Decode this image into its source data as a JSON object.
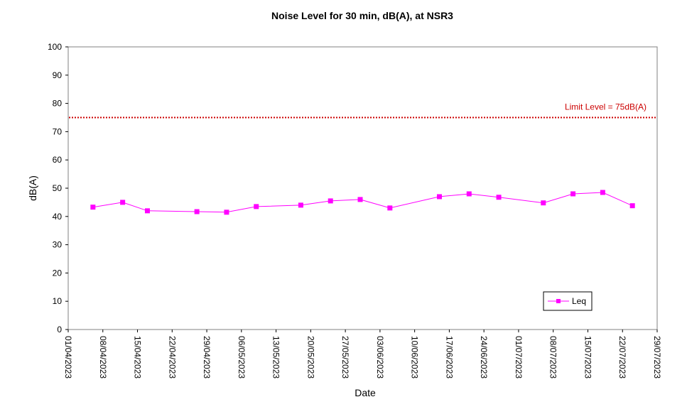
{
  "chart_data": {
    "type": "line",
    "title": "Noise Level for 30 min, dB(A), at NSR3",
    "xlabel": "Date",
    "ylabel": "dB(A)",
    "xlim": [
      "2023-04-01",
      "2023-07-29"
    ],
    "ylim": [
      0,
      100
    ],
    "y_ticks": [
      0,
      10,
      20,
      30,
      40,
      50,
      60,
      70,
      80,
      90,
      100
    ],
    "x_ticks": [
      "2023-04-01",
      "2023-04-08",
      "2023-04-15",
      "2023-04-22",
      "2023-04-29",
      "2023-05-06",
      "2023-05-13",
      "2023-05-20",
      "2023-05-27",
      "2023-06-03",
      "2023-06-10",
      "2023-06-17",
      "2023-06-24",
      "2023-07-01",
      "2023-07-08",
      "2023-07-15",
      "2023-07-22",
      "2023-07-29"
    ],
    "x_tick_labels": [
      "01/04/2023",
      "08/04/2023",
      "15/04/2023",
      "22/04/2023",
      "29/04/2023",
      "06/05/2023",
      "13/05/2023",
      "20/05/2023",
      "27/05/2023",
      "03/06/2023",
      "10/06/2023",
      "17/06/2023",
      "24/06/2023",
      "01/07/2023",
      "08/07/2023",
      "15/07/2023",
      "22/07/2023",
      "29/07/2023"
    ],
    "grid": false,
    "legend": {
      "position": "bottom-right",
      "entries": [
        "Leq"
      ]
    },
    "series": [
      {
        "name": "Leq",
        "color": "#ff00ff",
        "marker": "square",
        "points": [
          {
            "x": "2023-04-06",
            "y": 43.3
          },
          {
            "x": "2023-04-12",
            "y": 45.0
          },
          {
            "x": "2023-04-17",
            "y": 42.0
          },
          {
            "x": "2023-04-27",
            "y": 41.7
          },
          {
            "x": "2023-05-03",
            "y": 41.5
          },
          {
            "x": "2023-05-09",
            "y": 43.5
          },
          {
            "x": "2023-05-18",
            "y": 44.0
          },
          {
            "x": "2023-05-24",
            "y": 45.5
          },
          {
            "x": "2023-05-30",
            "y": 46.0
          },
          {
            "x": "2023-06-05",
            "y": 43.0
          },
          {
            "x": "2023-06-15",
            "y": 47.0
          },
          {
            "x": "2023-06-21",
            "y": 48.0
          },
          {
            "x": "2023-06-27",
            "y": 46.8
          },
          {
            "x": "2023-07-06",
            "y": 44.8
          },
          {
            "x": "2023-07-12",
            "y": 48.0
          },
          {
            "x": "2023-07-18",
            "y": 48.5
          },
          {
            "x": "2023-07-24",
            "y": 43.8
          }
        ]
      }
    ],
    "annotations": [
      {
        "text": "Limit Level  = 75dB(A)",
        "y": 75,
        "color": "#cc0000",
        "style": "dotted"
      }
    ]
  }
}
